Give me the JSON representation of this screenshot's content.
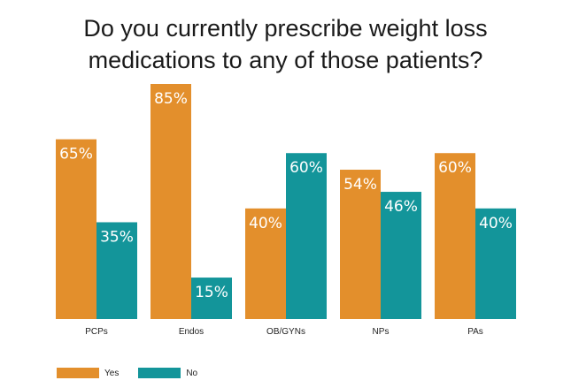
{
  "chart_data": {
    "type": "bar",
    "title_lines": [
      "Do you currently prescribe weight loss",
      "medications to any of those patients?"
    ],
    "categories": [
      "PCPs",
      "Endos",
      "OB/GYNs",
      "NPs",
      "PAs"
    ],
    "series": [
      {
        "name": "Yes",
        "color": "#E38F2C",
        "values": [
          65,
          85,
          40,
          54,
          60
        ],
        "labels": [
          "65%",
          "85%",
          "40%",
          "54%",
          "60%"
        ]
      },
      {
        "name": "No",
        "color": "#13959A",
        "values": [
          35,
          15,
          60,
          46,
          40
        ],
        "labels": [
          "35%",
          "15%",
          "60%",
          "46%",
          "40%"
        ]
      }
    ],
    "ylim": [
      0,
      100
    ],
    "legend_position": "bottom-left",
    "grid": false
  }
}
